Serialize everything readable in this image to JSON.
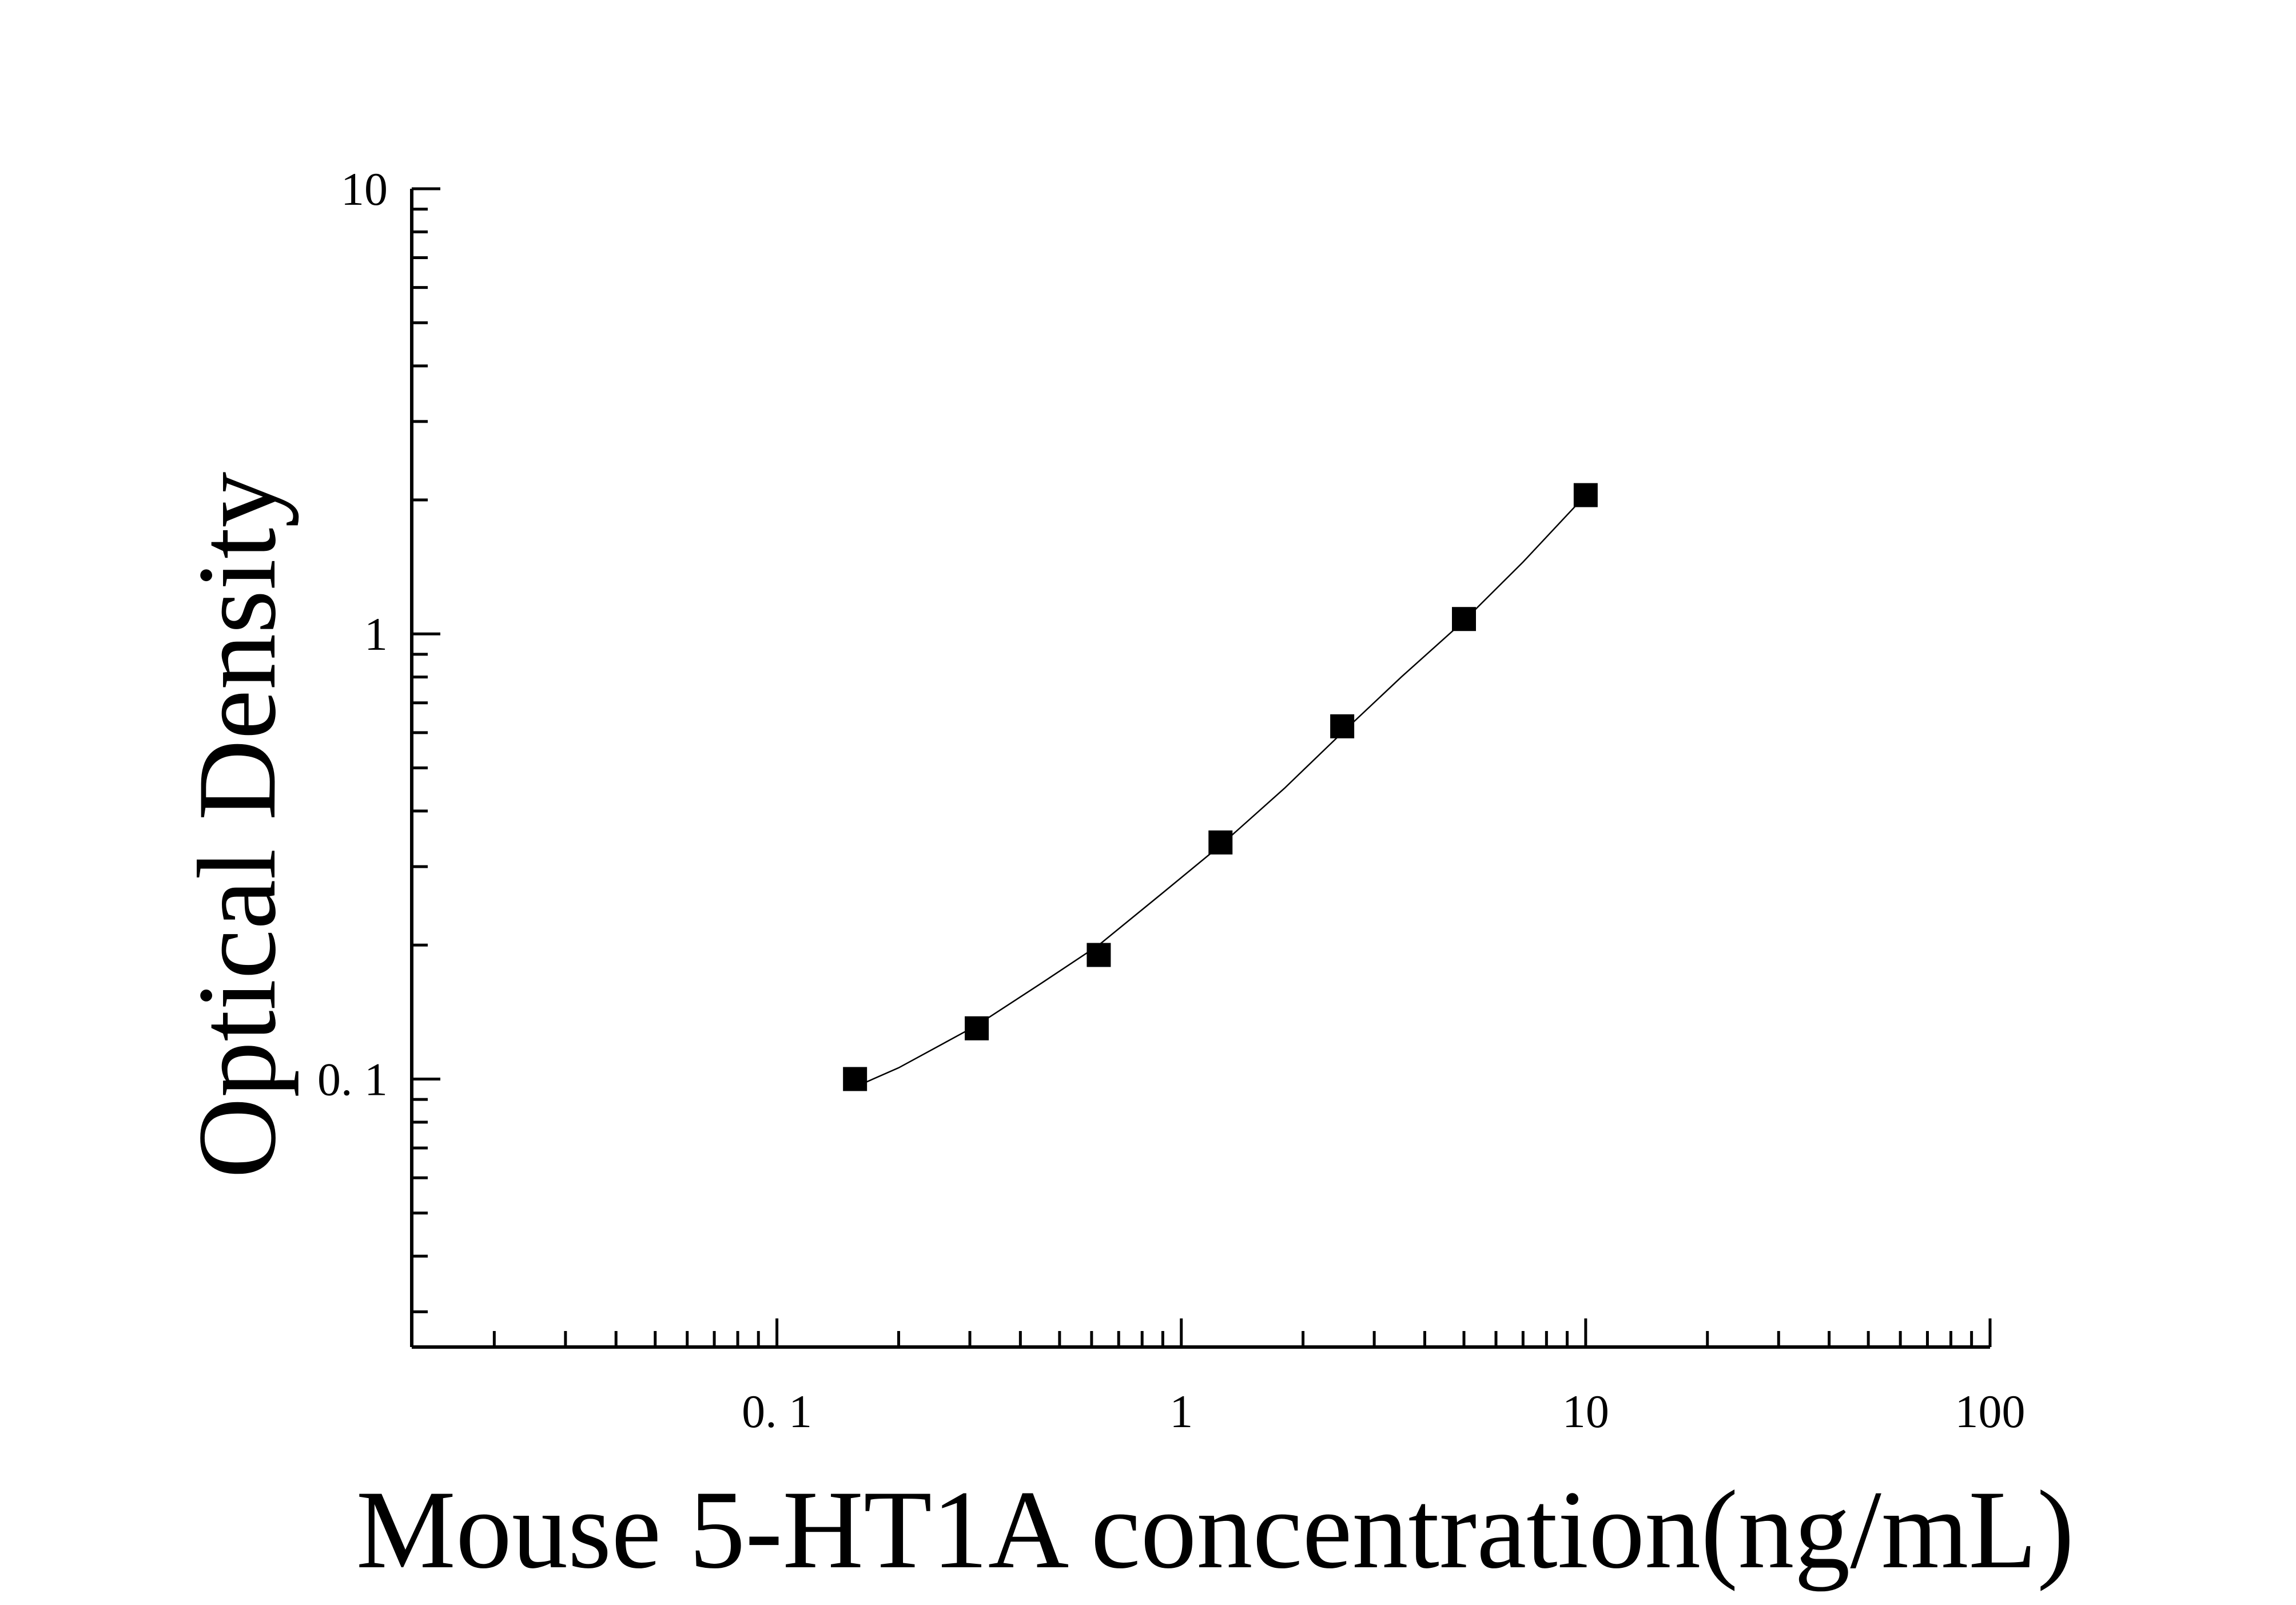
{
  "chart_data": {
    "type": "scatter",
    "xlabel": "Mouse 5-HT1A concentration(ng/mL)",
    "ylabel": "Optical Density",
    "x_scale": "log",
    "y_scale": "log",
    "xlim": [
      0.0125,
      100
    ],
    "ylim": [
      0.025,
      10
    ],
    "x_ticks": [
      {
        "value": 0.1,
        "label": "0. 1"
      },
      {
        "value": 1,
        "label": "1"
      },
      {
        "value": 10,
        "label": "10"
      },
      {
        "value": 100,
        "label": "100"
      }
    ],
    "y_ticks": [
      {
        "value": 0.1,
        "label": "0. 1"
      },
      {
        "value": 1,
        "label": "1"
      },
      {
        "value": 10,
        "label": "10"
      }
    ],
    "grid": false,
    "series": [
      {
        "marker": "square",
        "color": "#000000",
        "x": [
          0.156,
          0.312,
          0.625,
          1.25,
          2.5,
          5,
          10
        ],
        "y": [
          0.1,
          0.13,
          0.19,
          0.34,
          0.62,
          1.08,
          2.05
        ]
      }
    ],
    "fit_curve": {
      "color": "#000000",
      "x": [
        0.156,
        0.2,
        0.312,
        0.45,
        0.625,
        0.9,
        1.25,
        1.8,
        2.5,
        3.5,
        5,
        7,
        10
      ],
      "y": [
        0.096,
        0.106,
        0.132,
        0.164,
        0.2,
        0.262,
        0.335,
        0.45,
        0.6,
        0.8,
        1.07,
        1.45,
        2.05
      ]
    }
  }
}
